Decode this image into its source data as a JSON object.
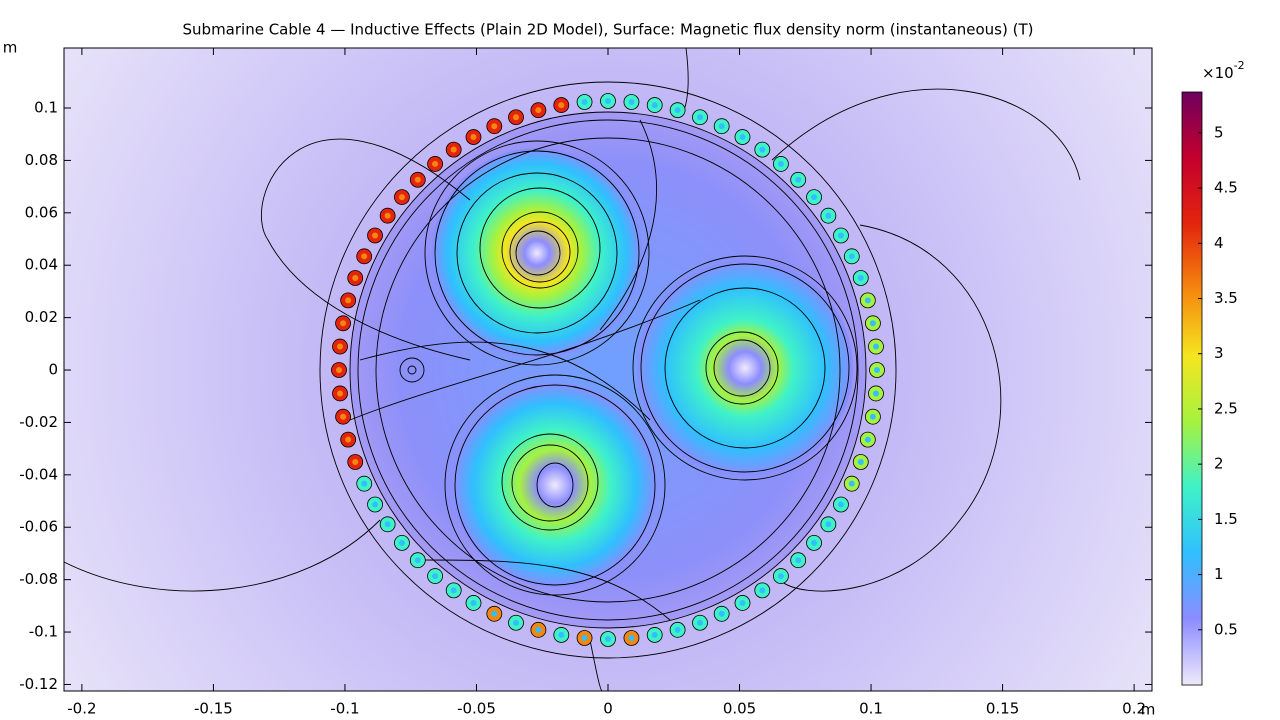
{
  "chart_data": {
    "type": "surface",
    "title": "Submarine Cable 4 — Inductive Effects (Plain 2D Model), Surface: Magnetic flux density norm (instantaneous) (T)",
    "xlabel": "m",
    "ylabel": "m",
    "xlim": [
      -0.2068,
      0.2068
    ],
    "ylim": [
      -0.1225,
      0.1229
    ],
    "xticks": [
      -0.2,
      -0.15,
      -0.1,
      -0.05,
      0,
      0.05,
      0.1,
      0.15,
      0.2
    ],
    "yticks": [
      -0.12,
      -0.1,
      -0.08,
      -0.06,
      -0.04,
      -0.02,
      0,
      0.02,
      0.04,
      0.06,
      0.08,
      0.1
    ],
    "clim": [
      0,
      5.37
    ],
    "cticks": [
      0.5,
      1,
      1.5,
      2,
      2.5,
      3,
      3.5,
      4,
      4.5,
      5
    ],
    "colorbar_exponent_base": "×10",
    "colorbar_exponent": "-2",
    "colormap": [
      "#efeafb",
      "#8c8cff",
      "#30bfff",
      "#3ff2c8",
      "#a6f23f",
      "#f5e51f",
      "#f5870f",
      "#e3250d",
      "#c4002d",
      "#6e005e"
    ]
  }
}
